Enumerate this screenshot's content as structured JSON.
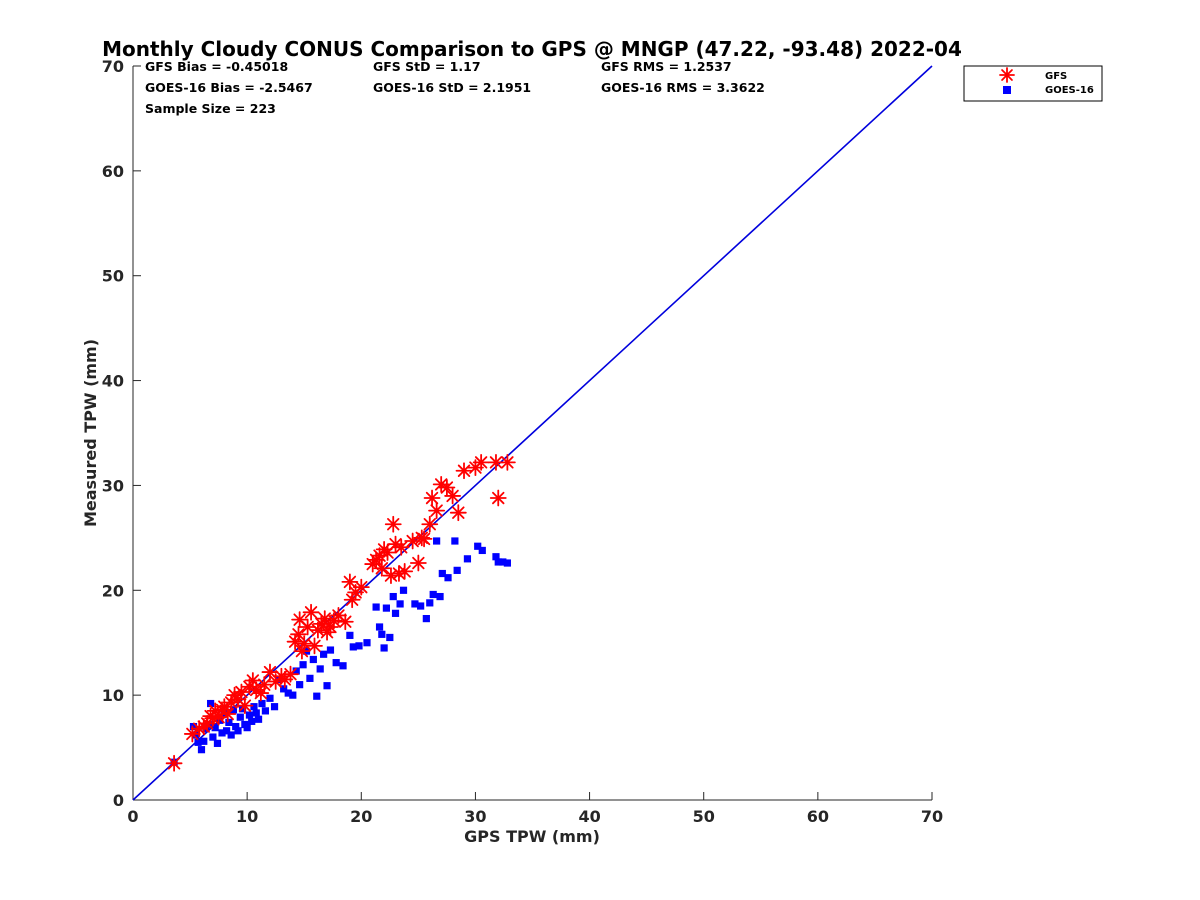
{
  "chart_data": {
    "type": "scatter",
    "title": "Monthly Cloudy CONUS Comparison to GPS @ MNGP (47.22, -93.48) 2022-04",
    "xlabel": "GPS TPW (mm)",
    "ylabel": "Measured TPW (mm)",
    "xlim": [
      0,
      70
    ],
    "ylim": [
      0,
      70
    ],
    "xticks": [
      "0",
      "10",
      "20",
      "30",
      "40",
      "50",
      "60",
      "70"
    ],
    "yticks": [
      "0",
      "10",
      "20",
      "30",
      "40",
      "50",
      "60",
      "70"
    ],
    "grid": false,
    "legend_position": "top-right",
    "stats": {
      "gfs_bias": "GFS Bias = -0.45018",
      "gfs_std": "GFS StD = 1.17",
      "gfs_rms": "GFS RMS = 1.2537",
      "goes_bias": "GOES-16 Bias = -2.5467",
      "goes_std": "GOES-16 StD = 2.1951",
      "goes_rms": "GOES-16 RMS = 3.3622",
      "sample_size": "Sample Size = 223"
    },
    "reference_line": {
      "x": [
        0,
        70
      ],
      "y": [
        0,
        70
      ],
      "color": "#0000dd"
    },
    "series": [
      {
        "name": "GFS",
        "marker": "asterisk",
        "color": "#ff0000",
        "points": [
          [
            3.6,
            3.5
          ],
          [
            5.2,
            6.3
          ],
          [
            5.8,
            6.8
          ],
          [
            6.2,
            7.0
          ],
          [
            6.5,
            7.3
          ],
          [
            6.8,
            8.0
          ],
          [
            7.0,
            7.8
          ],
          [
            7.2,
            8.5
          ],
          [
            7.5,
            7.9
          ],
          [
            7.8,
            8.6
          ],
          [
            8.0,
            8.9
          ],
          [
            8.3,
            8.2
          ],
          [
            8.6,
            9.3
          ],
          [
            8.9,
            10.0
          ],
          [
            9.2,
            9.6
          ],
          [
            9.5,
            10.3
          ],
          [
            9.8,
            9.0
          ],
          [
            10.2,
            10.8
          ],
          [
            10.5,
            11.4
          ],
          [
            10.8,
            10.5
          ],
          [
            11.2,
            10.2
          ],
          [
            11.5,
            11.0
          ],
          [
            12.0,
            12.2
          ],
          [
            12.5,
            11.3
          ],
          [
            13.0,
            11.8
          ],
          [
            13.3,
            11.5
          ],
          [
            13.8,
            12.0
          ],
          [
            14.2,
            15.1
          ],
          [
            14.5,
            15.8
          ],
          [
            14.6,
            17.2
          ],
          [
            14.8,
            14.2
          ],
          [
            15.0,
            14.9
          ],
          [
            15.3,
            16.5
          ],
          [
            15.6,
            17.9
          ],
          [
            15.9,
            14.7
          ],
          [
            16.2,
            16.2
          ],
          [
            16.5,
            16.8
          ],
          [
            16.8,
            17.3
          ],
          [
            17.0,
            16.0
          ],
          [
            17.3,
            16.5
          ],
          [
            17.6,
            17.1
          ],
          [
            18.0,
            17.6
          ],
          [
            18.6,
            17.0
          ],
          [
            19.0,
            20.8
          ],
          [
            19.2,
            19.1
          ],
          [
            19.5,
            19.8
          ],
          [
            20.0,
            20.3
          ],
          [
            21.0,
            22.5
          ],
          [
            21.3,
            22.9
          ],
          [
            21.6,
            23.3
          ],
          [
            21.8,
            22.1
          ],
          [
            22.0,
            23.9
          ],
          [
            22.3,
            23.6
          ],
          [
            22.6,
            21.4
          ],
          [
            22.8,
            26.3
          ],
          [
            23.0,
            24.4
          ],
          [
            23.3,
            21.6
          ],
          [
            23.5,
            24.1
          ],
          [
            23.8,
            21.8
          ],
          [
            24.5,
            24.7
          ],
          [
            25.0,
            22.6
          ],
          [
            25.3,
            25.0
          ],
          [
            25.5,
            24.9
          ],
          [
            26.0,
            26.3
          ],
          [
            26.2,
            28.8
          ],
          [
            26.6,
            27.6
          ],
          [
            27.0,
            30.1
          ],
          [
            27.5,
            29.8
          ],
          [
            28.0,
            29.0
          ],
          [
            28.5,
            27.4
          ],
          [
            29.0,
            31.4
          ],
          [
            30.0,
            31.7
          ],
          [
            30.5,
            32.2
          ],
          [
            31.8,
            32.2
          ],
          [
            32.0,
            28.8
          ],
          [
            32.8,
            32.2
          ]
        ]
      },
      {
        "name": "GOES-16",
        "marker": "square",
        "color": "#0000ff",
        "points": [
          [
            3.6,
            3.6
          ],
          [
            5.3,
            7.0
          ],
          [
            5.5,
            6.2
          ],
          [
            5.7,
            5.5
          ],
          [
            6.0,
            4.8
          ],
          [
            6.2,
            5.6
          ],
          [
            6.4,
            6.8
          ],
          [
            6.6,
            7.2
          ],
          [
            6.8,
            9.2
          ],
          [
            7.0,
            6.0
          ],
          [
            7.2,
            6.9
          ],
          [
            7.4,
            5.4
          ],
          [
            7.6,
            7.6
          ],
          [
            7.8,
            6.4
          ],
          [
            8.0,
            8.2
          ],
          [
            8.2,
            6.6
          ],
          [
            8.4,
            7.4
          ],
          [
            8.6,
            6.2
          ],
          [
            8.8,
            8.6
          ],
          [
            9.0,
            7.0
          ],
          [
            9.2,
            6.6
          ],
          [
            9.4,
            7.9
          ],
          [
            9.6,
            8.7
          ],
          [
            9.8,
            7.2
          ],
          [
            10.0,
            6.9
          ],
          [
            10.2,
            8.1
          ],
          [
            10.4,
            7.5
          ],
          [
            10.6,
            8.9
          ],
          [
            10.8,
            8.3
          ],
          [
            11.0,
            7.7
          ],
          [
            11.3,
            9.2
          ],
          [
            11.6,
            8.5
          ],
          [
            12.0,
            9.7
          ],
          [
            12.4,
            8.9
          ],
          [
            12.8,
            11.5
          ],
          [
            13.2,
            10.6
          ],
          [
            13.6,
            10.2
          ],
          [
            14.0,
            10.0
          ],
          [
            14.3,
            12.3
          ],
          [
            14.6,
            11.0
          ],
          [
            14.9,
            12.9
          ],
          [
            15.2,
            14.2
          ],
          [
            15.5,
            11.6
          ],
          [
            15.8,
            13.4
          ],
          [
            16.1,
            9.9
          ],
          [
            16.4,
            12.5
          ],
          [
            16.7,
            13.9
          ],
          [
            17.0,
            10.9
          ],
          [
            17.3,
            14.3
          ],
          [
            17.8,
            13.1
          ],
          [
            18.4,
            12.8
          ],
          [
            19.0,
            15.7
          ],
          [
            19.3,
            14.6
          ],
          [
            19.8,
            14.7
          ],
          [
            20.5,
            15.0
          ],
          [
            21.3,
            18.4
          ],
          [
            21.6,
            16.5
          ],
          [
            21.8,
            15.8
          ],
          [
            22.0,
            14.5
          ],
          [
            22.2,
            18.3
          ],
          [
            22.5,
            15.5
          ],
          [
            22.8,
            19.4
          ],
          [
            23.0,
            17.8
          ],
          [
            23.4,
            18.7
          ],
          [
            23.7,
            20.0
          ],
          [
            24.7,
            18.7
          ],
          [
            25.2,
            18.5
          ],
          [
            25.7,
            17.3
          ],
          [
            26.0,
            18.8
          ],
          [
            26.3,
            19.6
          ],
          [
            26.6,
            24.7
          ],
          [
            26.9,
            19.4
          ],
          [
            27.1,
            21.6
          ],
          [
            27.6,
            21.2
          ],
          [
            28.2,
            24.7
          ],
          [
            28.4,
            21.9
          ],
          [
            29.3,
            23.0
          ],
          [
            30.2,
            24.2
          ],
          [
            30.6,
            23.8
          ],
          [
            31.8,
            23.2
          ],
          [
            32.0,
            22.7
          ],
          [
            32.4,
            22.7
          ],
          [
            32.8,
            22.6
          ]
        ]
      }
    ]
  }
}
